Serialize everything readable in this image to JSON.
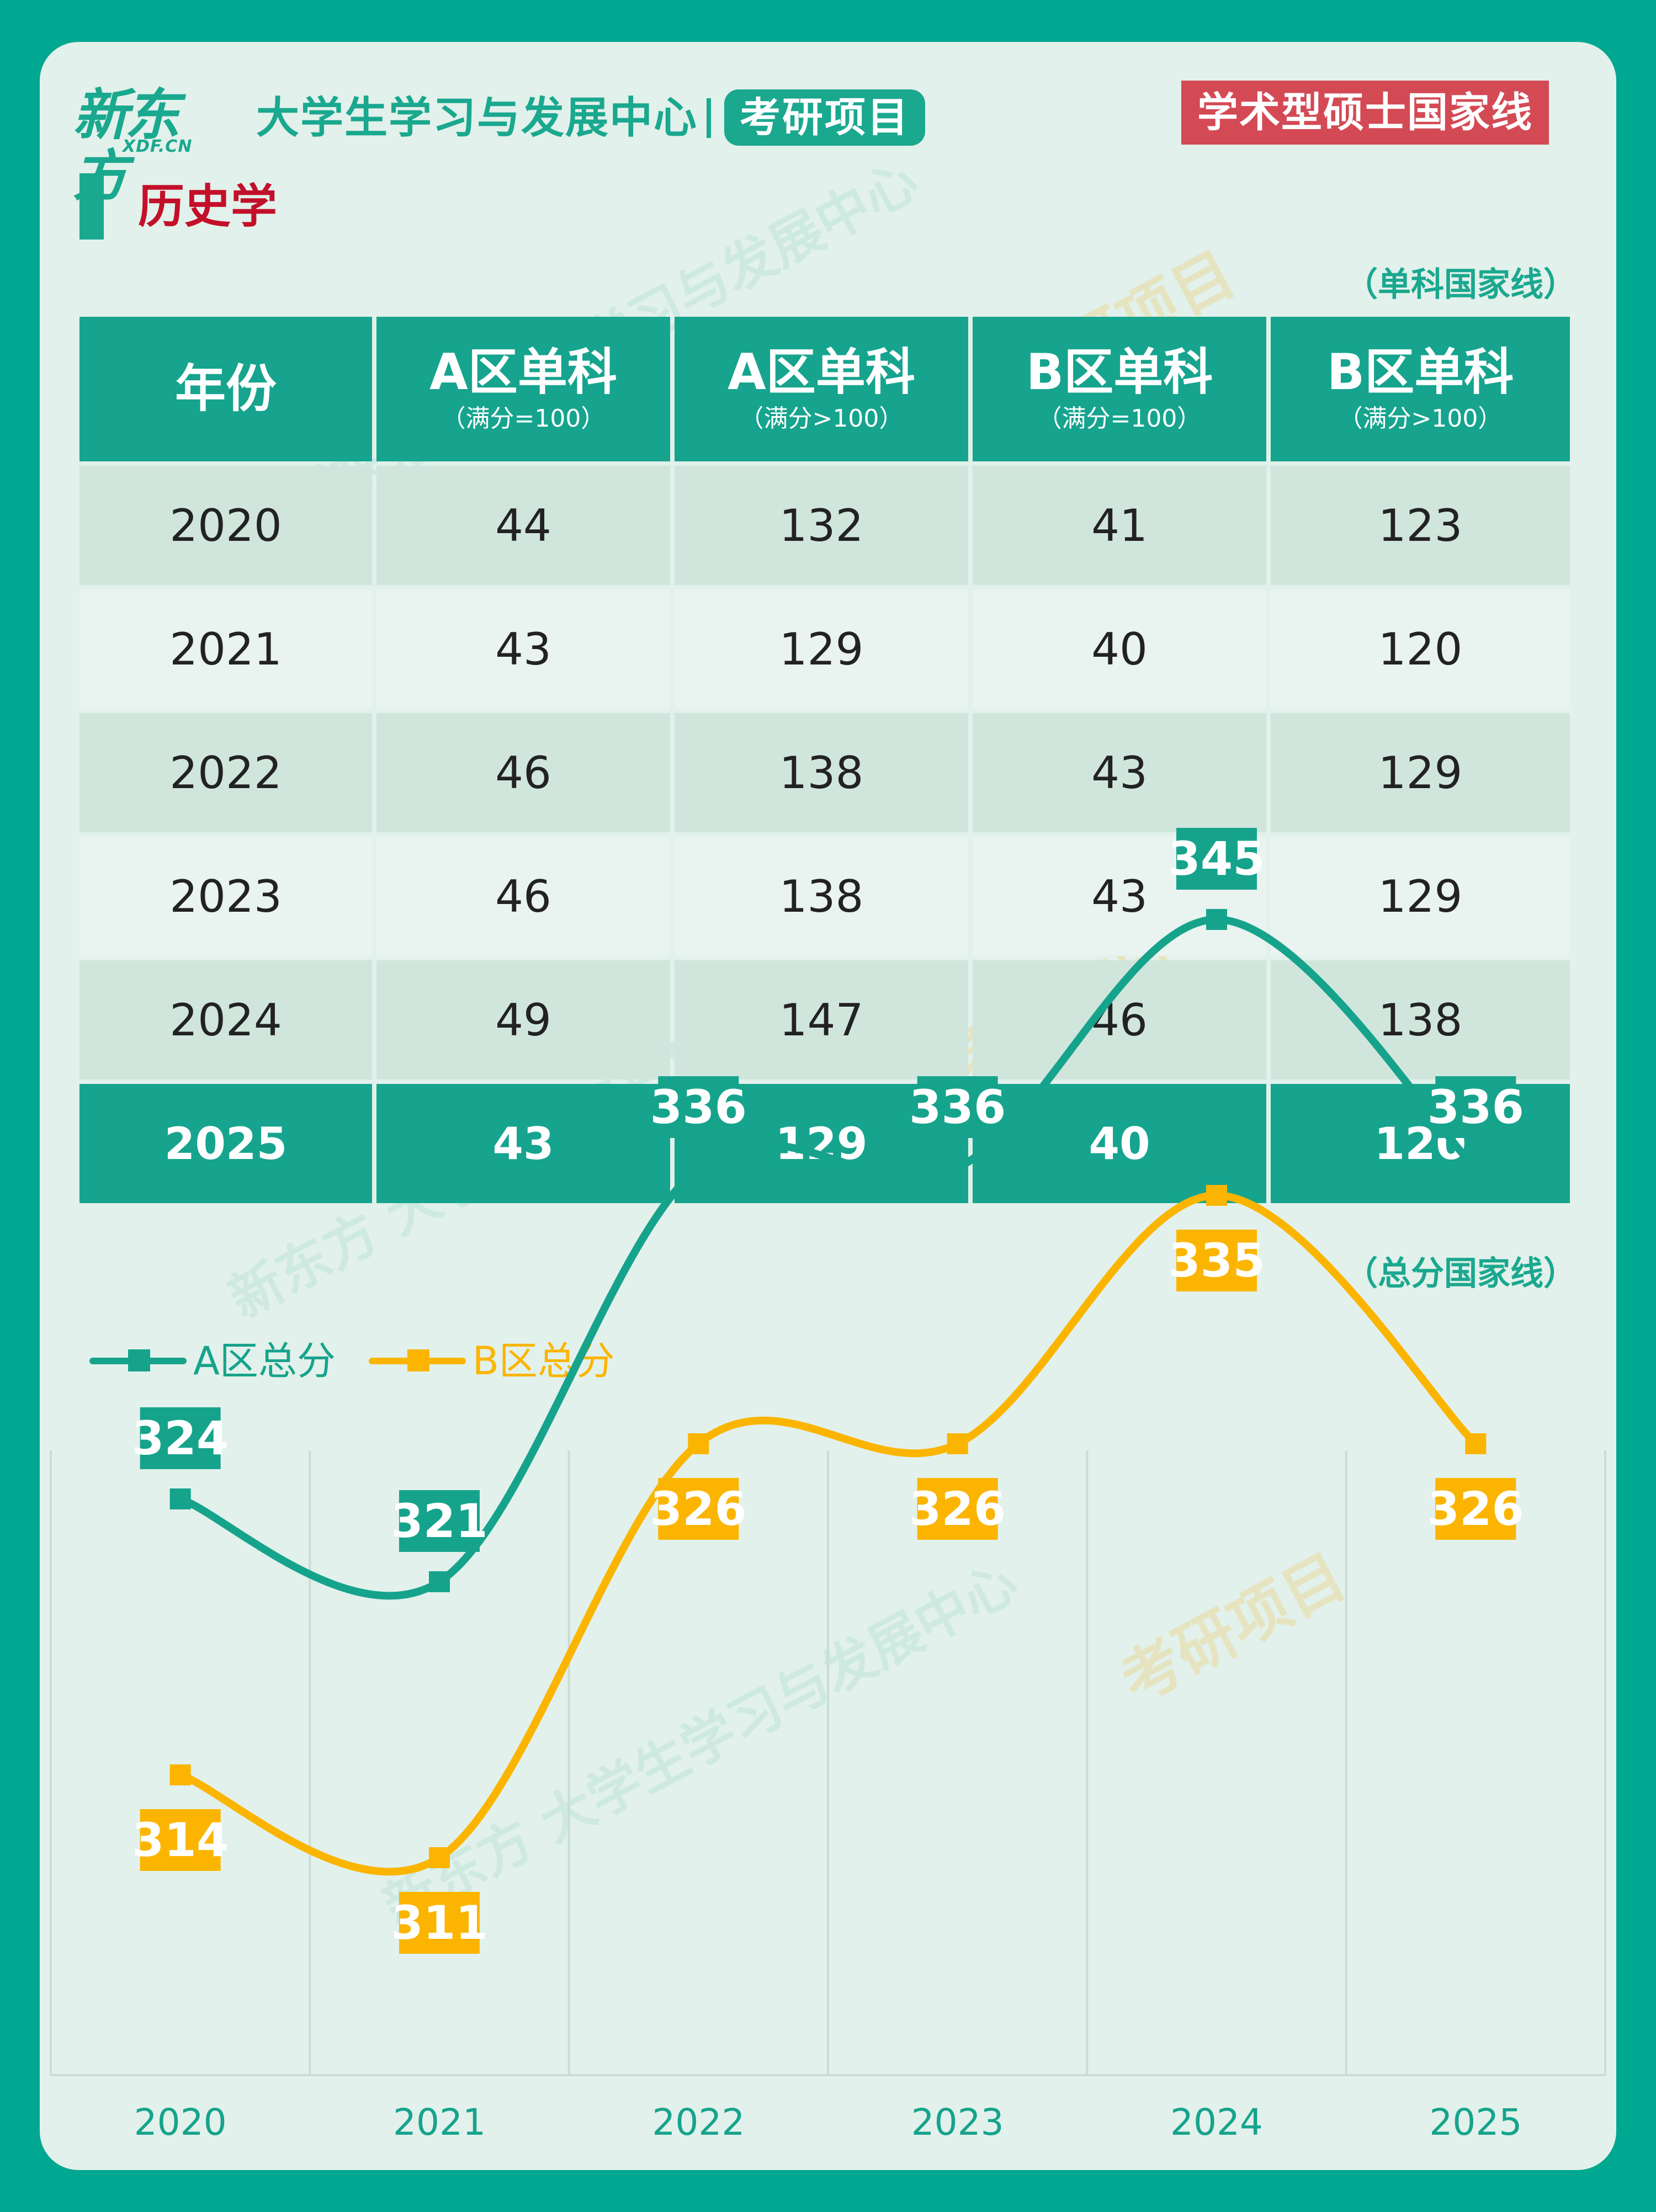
{
  "header": {
    "logo": "新东方",
    "logo_sub": "XDF.CN",
    "org_name": "大学生学习与发展中心",
    "project": "考研项目",
    "badge": "学术型硕士国家线"
  },
  "subject": "历史学",
  "table": {
    "note": "（单科国家线）",
    "headers": [
      {
        "main": "年份",
        "sub": ""
      },
      {
        "main": "A区单科",
        "sub": "（满分=100）"
      },
      {
        "main": "A区单科",
        "sub": "（满分>100）"
      },
      {
        "main": "B区单科",
        "sub": "（满分=100）"
      },
      {
        "main": "B区单科",
        "sub": "（满分>100）"
      }
    ],
    "rows": [
      [
        "2020",
        "44",
        "132",
        "41",
        "123"
      ],
      [
        "2021",
        "43",
        "129",
        "40",
        "120"
      ],
      [
        "2022",
        "46",
        "138",
        "43",
        "129"
      ],
      [
        "2023",
        "46",
        "138",
        "43",
        "129"
      ],
      [
        "2024",
        "49",
        "147",
        "46",
        "138"
      ],
      [
        "2025",
        "43",
        "129",
        "40",
        "120"
      ]
    ]
  },
  "chart_note": "（总分国家线）",
  "colors": {
    "teal": "#16a38c",
    "amber": "#fbb500",
    "badge_red": "#d34a55",
    "title_red": "#c3102a",
    "background": "#e2f1eb"
  },
  "chart_data": {
    "type": "line",
    "x": [
      "2020",
      "2021",
      "2022",
      "2023",
      "2024",
      "2025"
    ],
    "series": [
      {
        "name": "A区总分",
        "values": [
          324,
          321,
          336,
          336,
          345,
          336
        ],
        "color": "#16a38c"
      },
      {
        "name": "B区总分",
        "values": [
          314,
          311,
          326,
          326,
          335,
          326
        ],
        "color": "#fbb500"
      }
    ],
    "legend": "top-left",
    "grid": "vertical"
  }
}
